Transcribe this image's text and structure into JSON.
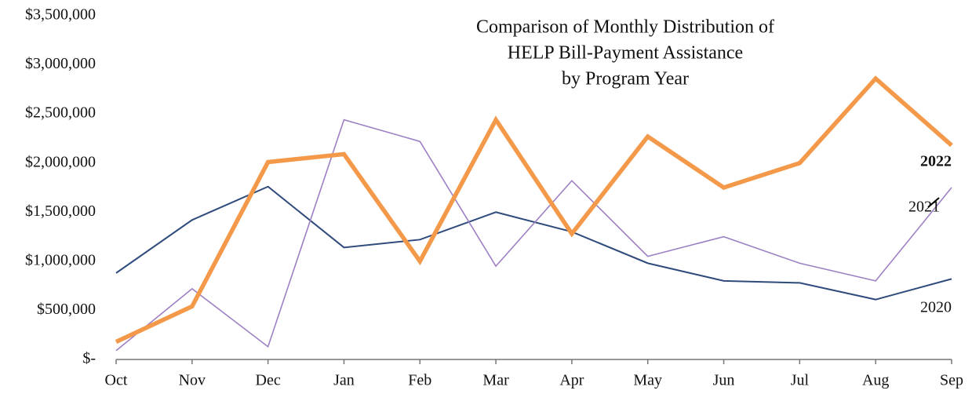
{
  "chart_data": {
    "type": "line",
    "title": [
      "Comparison of Monthly Distribution of",
      "HELP Bill-Payment Assistance",
      "by Program Year"
    ],
    "categories": [
      "Oct",
      "Nov",
      "Dec",
      "Jan",
      "Feb",
      "Mar",
      "Apr",
      "May",
      "Jun",
      "Jul",
      "Aug",
      "Sep"
    ],
    "series": [
      {
        "name": "2020",
        "color": "#2f4b7c",
        "values": [
          880000,
          1420000,
          1760000,
          1140000,
          1220000,
          1500000,
          1300000,
          980000,
          800000,
          780000,
          610000,
          820000
        ]
      },
      {
        "name": "2021",
        "color": "#9d80c4",
        "values": [
          90000,
          720000,
          130000,
          2440000,
          2220000,
          950000,
          1820000,
          1050000,
          1250000,
          980000,
          800000,
          1750000
        ]
      },
      {
        "name": "2022",
        "color": "#f4994a",
        "values": [
          180000,
          540000,
          2010000,
          2090000,
          1000000,
          2440000,
          1280000,
          2270000,
          1750000,
          2000000,
          2860000,
          2180000
        ]
      }
    ],
    "ylim": [
      0,
      3500000
    ],
    "yticks": [
      {
        "value": 0,
        "label": "$-"
      },
      {
        "value": 500000,
        "label": "$500,000"
      },
      {
        "value": 1000000,
        "label": "$1,000,000"
      },
      {
        "value": 1500000,
        "label": "$1,500,000"
      },
      {
        "value": 2000000,
        "label": "$2,000,000"
      },
      {
        "value": 2500000,
        "label": "$2,500,000"
      },
      {
        "value": 3000000,
        "label": "$3,000,000"
      },
      {
        "value": 3500000,
        "label": "$3,500,000"
      }
    ],
    "grid": false
  }
}
